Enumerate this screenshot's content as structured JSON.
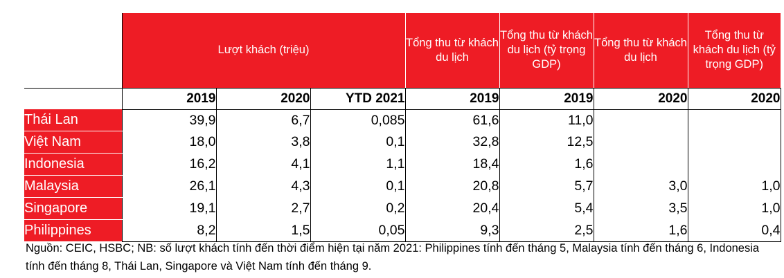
{
  "table": {
    "headers": [
      {
        "label": "Lượt khách (triệu)"
      },
      {
        "label": "Tổng thu từ khách du lịch"
      },
      {
        "label": "Tổng thu từ khách du lịch (tỷ trọng GDP)"
      },
      {
        "label": "Tổng thu từ khách du lịch"
      },
      {
        "label": "Tổng thu từ khách du lịch (tỷ trọng GDP)"
      }
    ],
    "years": [
      "2019",
      "2020",
      "YTD 2021",
      "2019",
      "2019",
      "2020",
      "2020"
    ],
    "rows": [
      {
        "country": "Thái Lan",
        "values": [
          "39,9",
          "6,7",
          "0,085",
          "61,6",
          "11,0",
          "",
          ""
        ]
      },
      {
        "country": "Việt Nam",
        "values": [
          "18,0",
          "3,8",
          "0,1",
          "32,8",
          "12,5",
          "",
          ""
        ]
      },
      {
        "country": "Indonesia",
        "values": [
          "16,2",
          "4,1",
          "1,1",
          "18,4",
          "1,6",
          "",
          ""
        ]
      },
      {
        "country": "Malaysia",
        "values": [
          "26,1",
          "4,3",
          "0,1",
          "20,8",
          "5,7",
          "3,0",
          "1,0"
        ]
      },
      {
        "country": "Singapore",
        "values": [
          "19,1",
          "2,7",
          "0,2",
          "20,4",
          "5,4",
          "3,5",
          "1,0"
        ]
      },
      {
        "country": "Philippines",
        "values": [
          "8,2",
          "1,5",
          "0,05",
          "9,3",
          "2,5",
          "1,6",
          "0,4"
        ]
      }
    ]
  },
  "note": "Nguồn: CEIC, HSBC; NB: số lượt khách tính đến thời điểm hiện tại năm 2021: Philippines tính đến tháng 5, Malaysia tính đến tháng 6, Indonesia tính đến tháng 8, Thái Lan, Singapore và Việt Nam tính đến tháng 9.",
  "colors": {
    "accent_red": "#ee1c25"
  }
}
